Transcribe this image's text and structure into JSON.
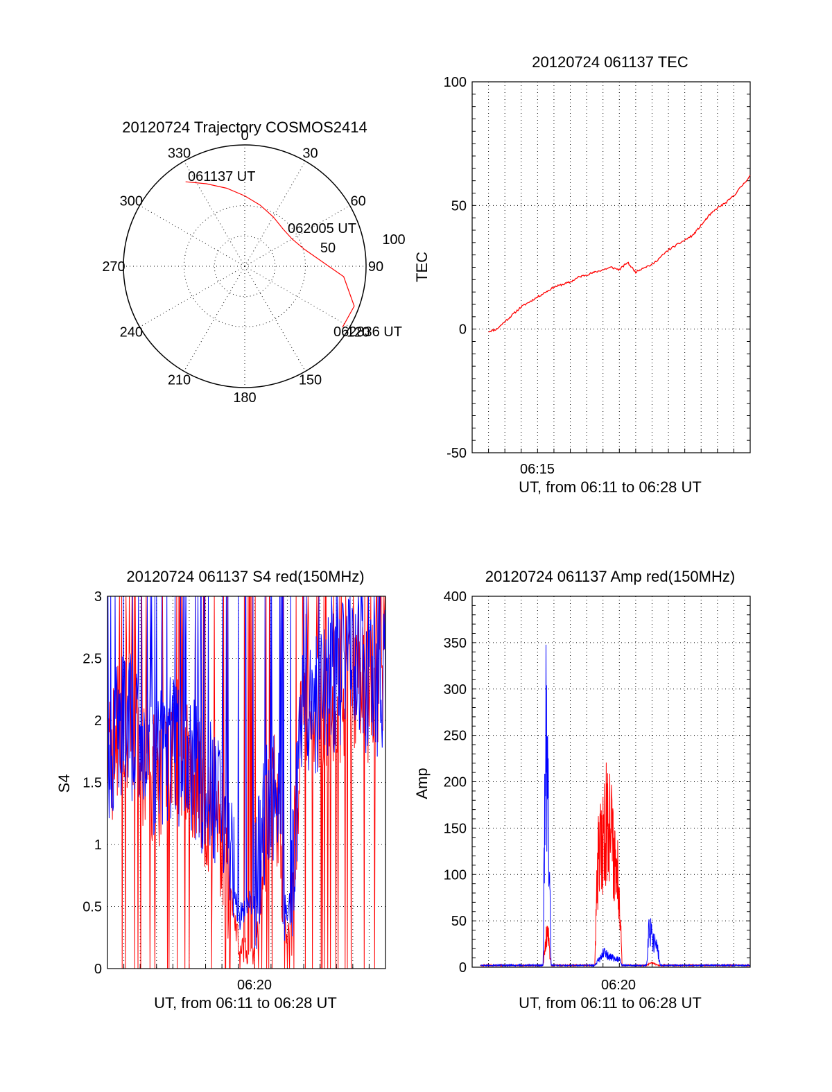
{
  "colors": {
    "red": "#ff0000",
    "blue": "#0000ff",
    "axis": "#000000"
  },
  "chart_data": [
    {
      "type": "polar",
      "title": "20120724 Trajectory COSMOS2414",
      "azimuth_labels": [
        "0",
        "30",
        "60",
        "90",
        "120",
        "150",
        "180",
        "210",
        "240",
        "270",
        "300",
        "330"
      ],
      "radial_labels": [
        "50",
        "100"
      ],
      "trajectory": {
        "start_label": "061137 UT",
        "mid_label": "062005 UT",
        "end_label": "062836 UT",
        "points": [
          [
            325,
            85
          ],
          [
            335,
            75
          ],
          [
            347,
            66
          ],
          [
            0,
            58
          ],
          [
            14,
            52
          ],
          [
            30,
            47
          ],
          [
            46,
            44
          ],
          [
            60,
            45
          ],
          [
            74,
            51
          ],
          [
            86,
            63
          ],
          [
            96,
            82
          ],
          [
            110,
            96
          ],
          [
            122,
            95
          ]
        ]
      },
      "grid": true
    },
    {
      "type": "line",
      "title": "20120724 061137 TEC",
      "ylabel": "TEC",
      "xlabel": "UT, from 06:11 to 06:28 UT",
      "xlim": [
        "06:11",
        "06:28"
      ],
      "ylim": [
        -50,
        100
      ],
      "yticks": [
        "100",
        "50",
        "0",
        "-50"
      ],
      "xticks": [
        "06:15"
      ],
      "grid": true,
      "series": [
        {
          "color": "#ff0000",
          "x": [
            "06:12:00",
            "06:12:30",
            "06:13:00",
            "06:13:30",
            "06:14:00",
            "06:14:30",
            "06:15:00",
            "06:15:30",
            "06:16:00",
            "06:16:30",
            "06:17:00",
            "06:17:30",
            "06:18:00",
            "06:18:30",
            "06:19:00",
            "06:19:30",
            "06:20:00",
            "06:20:30",
            "06:21:00",
            "06:21:30",
            "06:22:00",
            "06:22:30",
            "06:23:00",
            "06:23:30",
            "06:24:00",
            "06:24:30",
            "06:25:00",
            "06:25:30",
            "06:26:00",
            "06:26:30",
            "06:27:00",
            "06:27:30",
            "06:28:00"
          ],
          "values": [
            -1,
            0,
            3,
            6,
            9,
            11,
            13,
            15,
            17,
            18,
            19,
            21,
            22,
            23,
            24,
            25,
            24,
            27,
            23,
            25,
            26,
            29,
            32,
            34,
            36,
            38,
            42,
            46,
            49,
            51,
            54,
            58,
            62
          ]
        }
      ]
    },
    {
      "type": "line",
      "title": "20120724 061137 S4 red(150MHz)",
      "ylabel": "S4",
      "xlabel": "UT, from 06:11 to 06:28 UT",
      "xlim": [
        "06:11",
        "06:28"
      ],
      "ylim": [
        0,
        3
      ],
      "yticks": [
        "3",
        "2.5",
        "2",
        "1.5",
        "1",
        "0.5",
        "0"
      ],
      "xticks": [
        "06:20"
      ],
      "grid": true,
      "series": [
        {
          "color": "#ff0000",
          "x": [
            "06:11:00",
            "06:12:00",
            "06:13:00",
            "06:14:00",
            "06:15:00",
            "06:16:00",
            "06:17:00",
            "06:18:00",
            "06:19:00",
            "06:19:30",
            "06:20:00",
            "06:21:00",
            "06:21:30",
            "06:22:00",
            "06:23:00",
            "06:24:00",
            "06:25:00",
            "06:26:00",
            "06:27:00",
            "06:28:00"
          ],
          "values": [
            1.6,
            2.1,
            1.8,
            1.5,
            1.9,
            1.7,
            1.4,
            1.1,
            0.2,
            0.15,
            0.1,
            1.4,
            1.2,
            0.1,
            2.3,
            2.0,
            2.2,
            2.4,
            2.1,
            2.6
          ]
        },
        {
          "color": "#0000ff",
          "x": [
            "06:11:00",
            "06:12:00",
            "06:13:00",
            "06:14:00",
            "06:15:00",
            "06:16:00",
            "06:17:00",
            "06:18:00",
            "06:19:00",
            "06:19:30",
            "06:20:00",
            "06:21:00",
            "06:21:30",
            "06:22:00",
            "06:23:00",
            "06:24:00",
            "06:25:00",
            "06:26:00",
            "06:27:00",
            "06:28:00"
          ],
          "values": [
            1.7,
            2.0,
            1.9,
            1.6,
            1.8,
            1.6,
            1.5,
            1.3,
            0.4,
            0.5,
            0.6,
            1.5,
            1.3,
            0.3,
            2.1,
            2.2,
            2.3,
            2.5,
            2.2,
            2.4
          ]
        }
      ]
    },
    {
      "type": "line",
      "title": "20120724 061137 Amp red(150MHz)",
      "ylabel": "Amp",
      "xlabel": "UT, from 06:11 to 06:28 UT",
      "xlim": [
        "06:11",
        "06:28"
      ],
      "ylim": [
        0,
        400
      ],
      "yticks": [
        "400",
        "350",
        "300",
        "250",
        "200",
        "150",
        "100",
        "50",
        "0"
      ],
      "xticks": [
        "06:20"
      ],
      "grid": true,
      "series": [
        {
          "color": "#ff0000",
          "x": [
            "06:11:30",
            "06:15:20",
            "06:15:35",
            "06:15:40",
            "06:15:50",
            "06:18:30",
            "06:18:40",
            "06:19:00",
            "06:19:20",
            "06:19:40",
            "06:20:00",
            "06:20:10",
            "06:21:40",
            "06:22:00",
            "06:22:20",
            "06:28:00"
          ],
          "values": [
            2,
            2,
            40,
            30,
            2,
            2,
            110,
            140,
            170,
            120,
            90,
            2,
            2,
            5,
            2,
            2
          ]
        },
        {
          "color": "#0000ff",
          "x": [
            "06:11:30",
            "06:15:20",
            "06:15:30",
            "06:15:40",
            "06:15:50",
            "06:18:30",
            "06:19:00",
            "06:19:30",
            "06:20:00",
            "06:20:10",
            "06:21:40",
            "06:21:50",
            "06:22:00",
            "06:22:20",
            "06:22:30",
            "06:28:00"
          ],
          "values": [
            2,
            2,
            256,
            150,
            2,
            2,
            15,
            10,
            8,
            2,
            2,
            45,
            30,
            20,
            2,
            2
          ]
        }
      ]
    }
  ]
}
